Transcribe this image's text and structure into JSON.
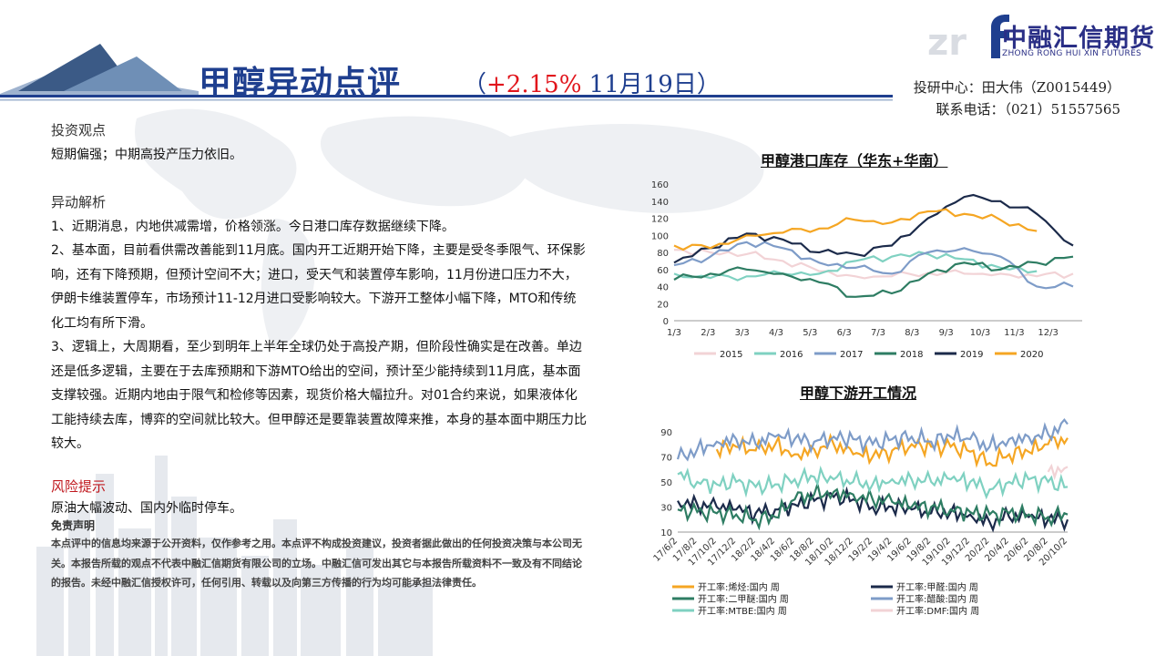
{
  "title": "甲醇异动点评",
  "subtitle_open": "（",
  "subtitle_change": "+2.15%",
  "subtitle_date": " 11月19日）",
  "logo": {
    "name_cn": "中融汇信期货",
    "name_en": "ZHONG RONG HUI XIN FUTURES"
  },
  "contact": {
    "analyst": "投研中心：田大伟（Z0015449）",
    "phone": "联系电话：（021）51557565"
  },
  "view": {
    "title": "投资观点",
    "text": "短期偏强；中期高投产压力依旧。"
  },
  "analysis": {
    "title": "异动解析",
    "p1": "1、近期消息，内地供减需增，价格领涨。今日港口库存数据继续下降。",
    "p2": "2、基本面，目前看供需改善能到11月底。国内开工近期开始下降，主要是受冬季限气、环保影响，还有下降预期，但预计空间不大；进口，受天气和装置停车影响，11月份进口压力不大，伊朗卡维装置停车，市场预计11-12月进口受影响较大。下游开工整体小幅下降，MTO和传统化工均有所下滑。",
    "p3": "3、逻辑上，大周期看，至少到明年上半年全球仍处于高投产期，但阶段性确实是在改善。单边还是低多逻辑，主要在于去库预期和下游MTO给出的空间，预计至少能持续到11月底，基本面支撑较强。近期内地由于限气和检修等因素，现货价格大幅拉升。对01合约来说，如果液体化工能持续去库，博弈的空间就比较大。但甲醇还是要靠装置故障来推，本身的基本面中期压力比较大。"
  },
  "risk": {
    "title": "风险提示",
    "text": "原油大幅波动、国内外临时停车。"
  },
  "disclaimer": {
    "title": "免责声明",
    "text": "本点评中的信息均来源于公开资料，仅作参考之用。本点评不构成投资建议，投资者据此做出的任何投资决策与本公司无关。本报告所载的观点不代表中融汇信期货有限公司的立场。中融汇信可发出其它与本报告所载资料不一致及有不同结论的报告。未经中融汇信授权许可，任何引用、转载以及向第三方传播的行为均可能承担法律责任。"
  },
  "chart_data": [
    {
      "type": "line",
      "title": "甲醇港口库存（华东+华南）",
      "categories": [
        "1/3",
        "2/3",
        "3/3",
        "4/3",
        "5/3",
        "6/3",
        "7/3",
        "8/3",
        "9/3",
        "10/3",
        "11/3",
        "12/3"
      ],
      "ylim": [
        0,
        160
      ],
      "yticks": [
        "0",
        "20",
        "40",
        "60",
        "80",
        "100",
        "120",
        "140",
        "160"
      ],
      "series": [
        {
          "name": "2015",
          "color": "#f2d3d6",
          "values": [
            83,
            80,
            78,
            70,
            58,
            52,
            52,
            56,
            55,
            55,
            52,
            55
          ]
        },
        {
          "name": "2016",
          "color": "#7fd1c1",
          "values": [
            55,
            50,
            52,
            55,
            55,
            70,
            75,
            78,
            72,
            62,
            58,
            null
          ]
        },
        {
          "name": "2017",
          "color": "#7e9cc8",
          "values": [
            65,
            75,
            92,
            85,
            68,
            62,
            55,
            80,
            85,
            75,
            40,
            40
          ]
        },
        {
          "name": "2018",
          "color": "#2e7d63",
          "values": [
            48,
            55,
            60,
            55,
            45,
            28,
            32,
            55,
            68,
            60,
            68,
            75
          ]
        },
        {
          "name": "2019",
          "color": "#1b2a4a",
          "values": [
            68,
            85,
            102,
            95,
            80,
            78,
            88,
            120,
            145,
            140,
            125,
            88
          ]
        },
        {
          "name": "2020",
          "color": "#f5a623",
          "values": [
            88,
            85,
            100,
            103,
            108,
            118,
            115,
            128,
            125,
            118,
            105,
            null
          ]
        }
      ]
    },
    {
      "type": "line",
      "title": "甲醇下游开工情况",
      "categories": [
        "17/6/2",
        "17/8/2",
        "17/10/2",
        "17/12/2",
        "18/2/2",
        "18/4/2",
        "18/6/2",
        "18/8/2",
        "18/10/2",
        "18/12/2",
        "19/2/2",
        "19/4/2",
        "19/6/2",
        "19/8/2",
        "19/10/2",
        "19/12/2",
        "20/2/2",
        "20/4/2",
        "20/6/2",
        "20/8/2",
        "20/10/2"
      ],
      "ylim": [
        10,
        100
      ],
      "yticks": [
        "10",
        "30",
        "50",
        "70",
        "90"
      ],
      "series": [
        {
          "name": "开工率:烯烃:国内 周",
          "color": "#f5a623",
          "values": [
            null,
            null,
            76,
            78,
            75,
            80,
            72,
            76,
            80,
            72,
            70,
            75,
            80,
            78,
            78,
            74,
            65,
            72,
            74,
            80,
            85
          ]
        },
        {
          "name": "开工率:甲醛:国内 周",
          "color": "#1b2a4a",
          "values": [
            35,
            32,
            30,
            28,
            25,
            28,
            32,
            35,
            38,
            36,
            30,
            30,
            28,
            25,
            26,
            24,
            18,
            22,
            22,
            20,
            20
          ]
        },
        {
          "name": "开工率:二甲醚:国内 周",
          "color": "#2e7d63",
          "values": [
            28,
            26,
            25,
            24,
            20,
            22,
            36,
            40,
            42,
            40,
            36,
            34,
            30,
            30,
            28,
            26,
            24,
            25,
            24,
            22,
            24
          ]
        },
        {
          "name": "开工率:醋酸:国内 周",
          "color": "#7e9cc8",
          "values": [
            68,
            76,
            82,
            84,
            80,
            86,
            84,
            82,
            86,
            84,
            80,
            84,
            86,
            82,
            86,
            84,
            78,
            84,
            86,
            88,
            96
          ]
        },
        {
          "name": "开工率:MTBE:国内 周",
          "color": "#7fd1c1",
          "values": [
            56,
            50,
            48,
            50,
            46,
            48,
            52,
            54,
            52,
            50,
            48,
            52,
            52,
            50,
            52,
            50,
            44,
            50,
            52,
            50,
            46
          ]
        },
        {
          "name": "开工率:DMF:国内 周",
          "color": "#f2d3d6",
          "values": [
            null,
            null,
            null,
            null,
            null,
            null,
            null,
            null,
            null,
            null,
            null,
            null,
            null,
            null,
            null,
            null,
            null,
            null,
            null,
            58,
            62
          ]
        }
      ]
    }
  ]
}
